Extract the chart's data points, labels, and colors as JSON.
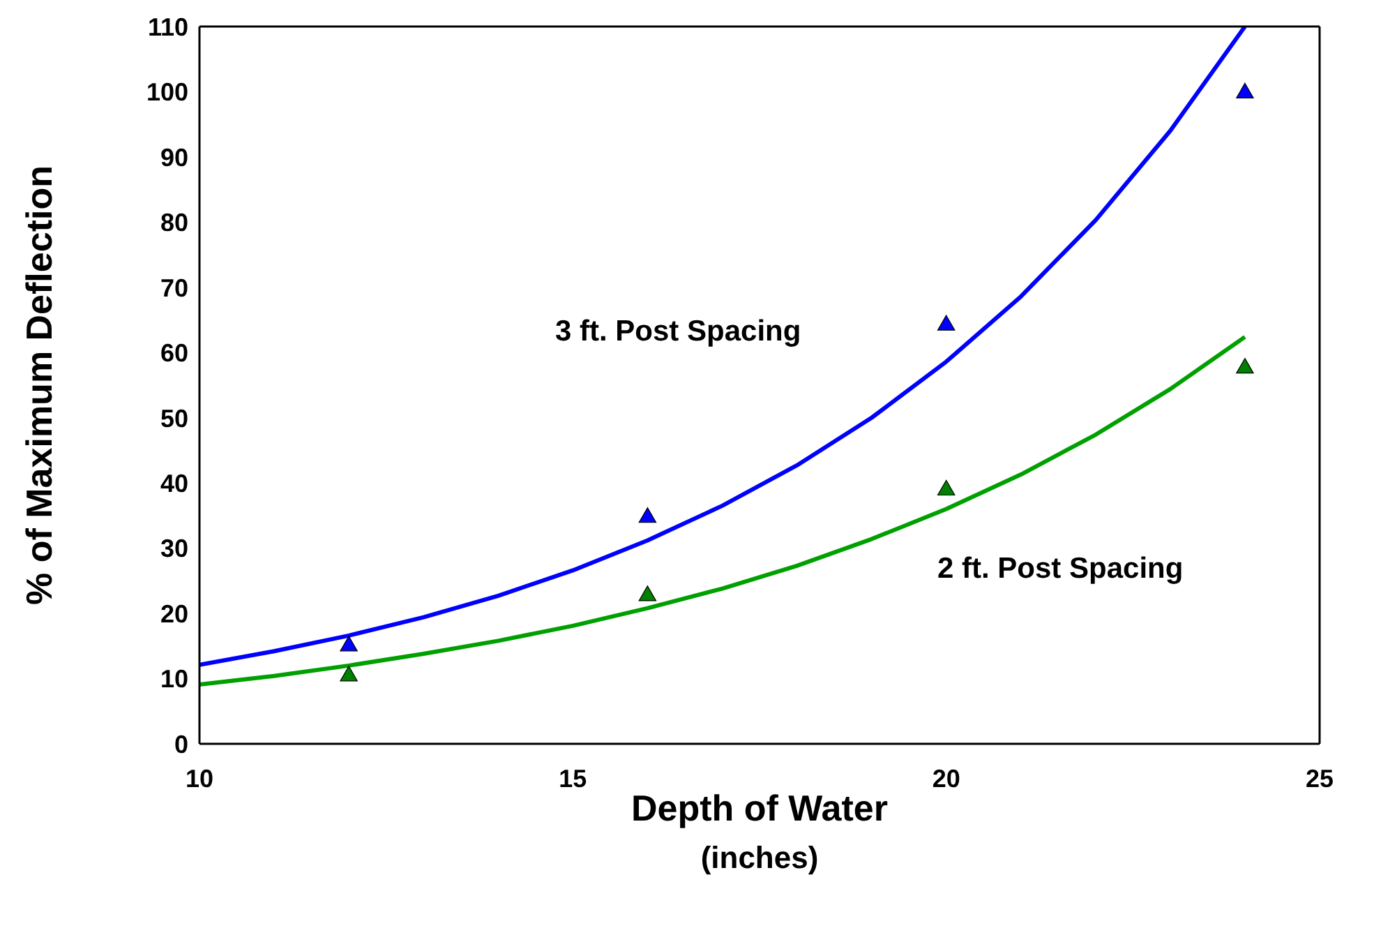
{
  "chart_data": {
    "type": "scatter",
    "xlabel": "Depth of Water\n(inches)",
    "ylabel": "% of Maximum Deflection",
    "xlim": [
      10,
      25
    ],
    "xticks": [
      10,
      15,
      20,
      25
    ],
    "ylim": [
      0,
      110
    ],
    "yticks": [
      0,
      10,
      20,
      30,
      40,
      50,
      60,
      70,
      80,
      90,
      100,
      110
    ],
    "marker": "triangle",
    "series": [
      {
        "color": "#0000ff",
        "x": [
          12,
          16,
          20,
          24
        ],
        "values": [
          15,
          34.7,
          64.2,
          99.8
        ]
      },
      {
        "color": "#008000",
        "x": [
          12,
          16,
          20,
          24
        ],
        "values": [
          10.4,
          22.7,
          38.9,
          57.6
        ]
      },
      {
        "type": "line",
        "color": "#0000ff",
        "marker": "none",
        "x": [
          10,
          11,
          12,
          13,
          14,
          15,
          16,
          17,
          18,
          19,
          20,
          21,
          22,
          23,
          24
        ],
        "values": [
          12.1,
          14.2,
          16.6,
          19.4,
          22.7,
          26.6,
          31.2,
          36.5,
          42.7,
          50.0,
          58.6,
          68.6,
          80.3,
          94.0,
          110
        ]
      },
      {
        "type": "line",
        "color": "#00a000",
        "marker": "none",
        "x": [
          10,
          11,
          12,
          13,
          14,
          15,
          16,
          17,
          18,
          19,
          20,
          21,
          22,
          23,
          24
        ],
        "values": [
          9.1,
          10.4,
          12.0,
          13.8,
          15.8,
          18.1,
          20.8,
          23.8,
          27.3,
          31.4,
          36.0,
          41.3,
          47.4,
          54.4,
          62.4
        ]
      }
    ],
    "annotations": [
      "3 ft. Post Spacing",
      "2 ft. Post Spacing"
    ]
  }
}
